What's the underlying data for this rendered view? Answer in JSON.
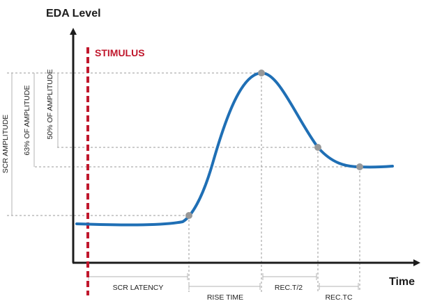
{
  "diagram": {
    "y_axis_title": "EDA Level",
    "x_axis_title": "Time",
    "stimulus_label": "STIMULUS",
    "amplitude_labels": {
      "scr_amplitude": "SCR AMPLITUDE",
      "pct63": "63% OF AMPLITUDE",
      "pct50": "50% OF AMPLITUDE"
    },
    "interval_labels": {
      "scr_latency": "SCR LATENCY",
      "rise_time": "RISE TIME",
      "rec_t2": "REC.T/2",
      "rec_tc": "REC.TC"
    },
    "colors": {
      "curve": "#1f6fb5",
      "stimulus": "#c0182d",
      "axis": "#1c1c1c",
      "marker": "#999999",
      "guide": "#9a9a9a"
    }
  }
}
